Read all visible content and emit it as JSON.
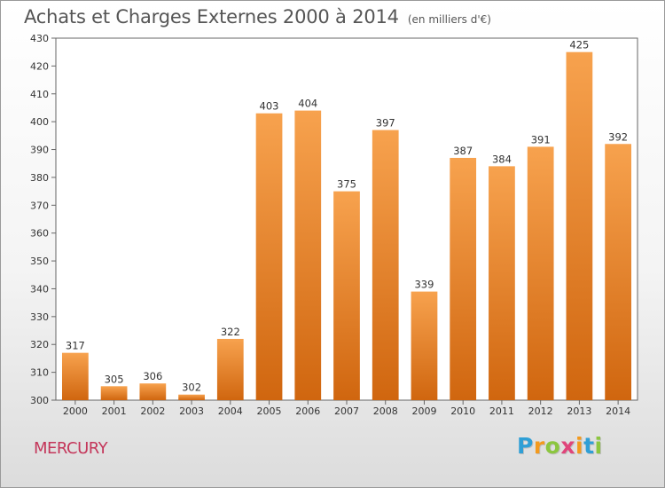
{
  "chart_data": {
    "type": "bar",
    "title": "Achats et Charges Externes 2000 à 2014",
    "subtitle": "(en milliers d'€)",
    "categories": [
      "2000",
      "2001",
      "2002",
      "2003",
      "2004",
      "2005",
      "2006",
      "2007",
      "2008",
      "2009",
      "2010",
      "2011",
      "2012",
      "2013",
      "2014"
    ],
    "values": [
      317,
      305,
      306,
      302,
      322,
      403,
      404,
      375,
      397,
      339,
      387,
      384,
      391,
      425,
      392
    ],
    "ylim": [
      300,
      430
    ],
    "yticks": [
      300,
      310,
      320,
      330,
      340,
      350,
      360,
      370,
      380,
      390,
      400,
      410,
      420,
      430
    ],
    "grid": false,
    "bar_color": "#f08a24"
  },
  "commune": "MERCURY",
  "logo": {
    "letters": [
      {
        "char": "P",
        "color": "#2f9fd6"
      },
      {
        "char": "r",
        "color": "#f39a1e"
      },
      {
        "char": "o",
        "color": "#8cc63f"
      },
      {
        "char": "x",
        "color": "#e0457b"
      },
      {
        "char": "i",
        "color": "#f39a1e"
      },
      {
        "char": "t",
        "color": "#2f9fd6"
      },
      {
        "char": "i",
        "color": "#8cc63f"
      }
    ]
  }
}
